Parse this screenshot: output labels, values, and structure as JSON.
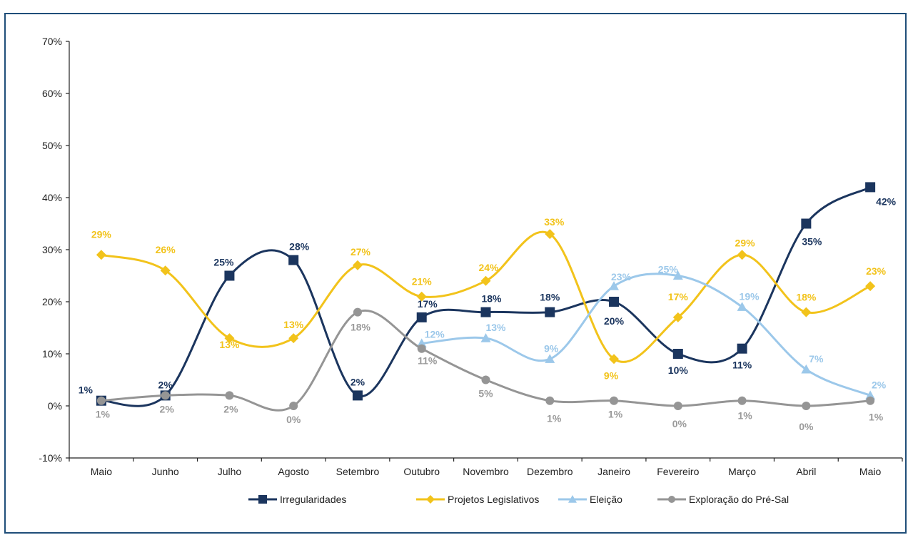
{
  "chart_data": {
    "type": "line",
    "categories": [
      "Maio",
      "Junho",
      "Julho",
      "Agosto",
      "Setembro",
      "Outubro",
      "Novembro",
      "Dezembro",
      "Janeiro",
      "Fevereiro",
      "Março",
      "Abril",
      "Maio"
    ],
    "ylim": [
      -10,
      70
    ],
    "yticks": [
      -10,
      0,
      10,
      20,
      30,
      40,
      50,
      60,
      70
    ],
    "ytick_labels": [
      "-10%",
      "0%",
      "10%",
      "20%",
      "30%",
      "40%",
      "50%",
      "60%",
      "70%"
    ],
    "grid": false,
    "legend": "bottom",
    "series": [
      {
        "name": "Irregularidades",
        "color": "#1b355e",
        "marker": "square",
        "values": [
          1,
          2,
          25,
          28,
          2,
          17,
          18,
          18,
          20,
          10,
          11,
          35,
          42
        ],
        "labels": [
          "1%",
          "2%",
          "25%",
          "28%",
          "2%",
          "17%",
          "18%",
          "18%",
          "20%",
          "10%",
          "11%",
          "35%",
          "42%"
        ]
      },
      {
        "name": "Projetos Legislativos",
        "color": "#f2c31b",
        "marker": "diamond",
        "values": [
          29,
          26,
          13,
          13,
          27,
          21,
          24,
          33,
          9,
          17,
          29,
          18,
          23
        ],
        "labels": [
          "29%",
          "26%",
          "13%",
          "13%",
          "27%",
          "21%",
          "24%",
          "33%",
          "9%",
          "17%",
          "29%",
          "18%",
          "23%"
        ]
      },
      {
        "name": "Eleição",
        "color": "#9cc8ea",
        "marker": "triangle",
        "values": [
          null,
          null,
          null,
          null,
          null,
          12,
          13,
          9,
          23,
          25,
          19,
          7,
          2
        ],
        "labels": [
          null,
          null,
          null,
          null,
          null,
          "12%",
          "13%",
          "9%",
          "23%",
          "25%",
          "19%",
          "7%",
          "2%"
        ]
      },
      {
        "name": "Exploração do Pré-Sal",
        "color": "#959595",
        "marker": "circle",
        "values": [
          1,
          2,
          2,
          0,
          18,
          11,
          5,
          1,
          1,
          0,
          1,
          0,
          1
        ],
        "labels": [
          "1%",
          "2%",
          "2%",
          "0%",
          "18%",
          "11%",
          "5%",
          "1%",
          "1%",
          "0%",
          "1%",
          "0%",
          "1%"
        ]
      }
    ]
  }
}
